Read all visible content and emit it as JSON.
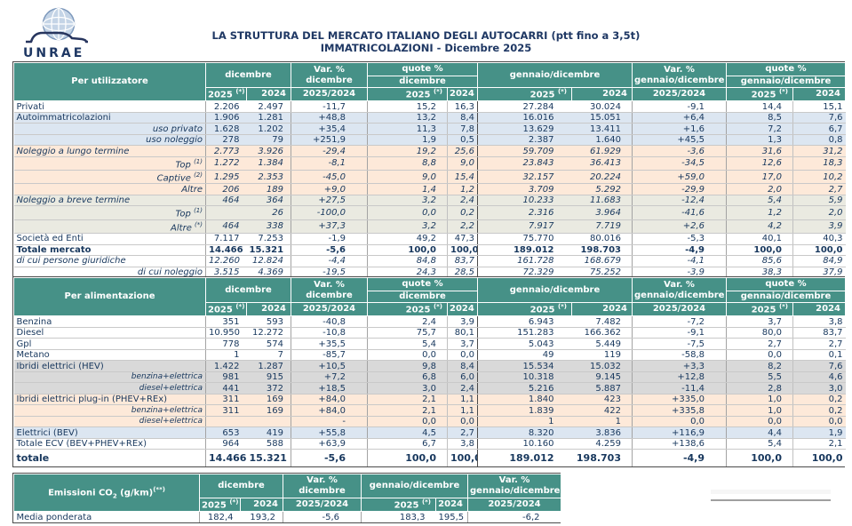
{
  "page": {
    "logo_text": "UNRAE",
    "title_line1": "LA STRUTTURA DEL MERCATO ITALIANO DEGLI AUTOCARRI (ptt fino a 3,5t)",
    "title_line2": "IMMATRICOLAZIONI - Dicembre 2025"
  },
  "colors": {
    "header_teal": "#469187",
    "text_navy": "#17375D",
    "title_navy": "#1F3864",
    "row_blue": "#DCE6F1",
    "row_peach": "#FDE9D9",
    "row_sand": "#EAEAE1",
    "row_gray": "#D9D9D9"
  },
  "header_labels": {
    "dicembre": "dicembre",
    "var_pct": "Var. %",
    "quote_pct": "quote %",
    "gen_dic": "gennaio/dicembre",
    "y2025": "2025",
    "y2025_sup": "(*)",
    "y2024": "2024",
    "ratio": "2025/2024"
  },
  "tables": {
    "per_utilizzatore": {
      "title": "Per utilizzatore",
      "rows": [
        {
          "label": "Privati",
          "cells": [
            "2.206",
            "2.497",
            "-11,7",
            "15,2",
            "16,3",
            "27.284",
            "30.024",
            "-9,1",
            "14,4",
            "15,1"
          ]
        },
        {
          "label": "Autoimmatricolazioni",
          "bg": "blue",
          "cells": [
            "1.906",
            "1.281",
            "+48,8",
            "13,2",
            "8,4",
            "16.016",
            "15.051",
            "+6,4",
            "8,5",
            "7,6"
          ]
        },
        {
          "label": "uso privato",
          "bg": "blue",
          "sub": true,
          "cells": [
            "1.628",
            "1.202",
            "+35,4",
            "11,3",
            "7,8",
            "13.629",
            "13.411",
            "+1,6",
            "7,2",
            "6,7"
          ]
        },
        {
          "label": "uso noleggio",
          "bg": "blue",
          "sub": true,
          "cells": [
            "278",
            "79",
            "+251,9",
            "1,9",
            "0,5",
            "2.387",
            "1.640",
            "+45,5",
            "1,3",
            "0,8"
          ]
        },
        {
          "label": "Noleggio a lungo termine",
          "bg": "peach",
          "italic": true,
          "icells": true,
          "cells": [
            "2.773",
            "3.926",
            "-29,4",
            "19,2",
            "25,6",
            "59.709",
            "61.929",
            "-3,6",
            "31,6",
            "31,2"
          ]
        },
        {
          "label": "Top",
          "sup": "(1)",
          "bg": "peach",
          "sub": true,
          "icells": true,
          "cells": [
            "1.272",
            "1.384",
            "-8,1",
            "8,8",
            "9,0",
            "23.843",
            "36.413",
            "-34,5",
            "12,6",
            "18,3"
          ]
        },
        {
          "label": "Captive",
          "sup": "(2)",
          "bg": "peach",
          "sub": true,
          "icells": true,
          "cells": [
            "1.295",
            "2.353",
            "-45,0",
            "9,0",
            "15,4",
            "32.157",
            "20.224",
            "+59,0",
            "17,0",
            "10,2"
          ]
        },
        {
          "label": "Altre",
          "bg": "peach",
          "sub": true,
          "icells": true,
          "cells": [
            "206",
            "189",
            "+9,0",
            "1,4",
            "1,2",
            "3.709",
            "5.292",
            "-29,9",
            "2,0",
            "2,7"
          ]
        },
        {
          "label": "Noleggio a breve termine",
          "bg": "sand",
          "italic": true,
          "icells": true,
          "cells": [
            "464",
            "364",
            "+27,5",
            "3,2",
            "2,4",
            "10.233",
            "11.683",
            "-12,4",
            "5,4",
            "5,9"
          ]
        },
        {
          "label": "Top",
          "sup": "(1)",
          "bg": "sand",
          "sub": true,
          "icells": true,
          "cells": [
            "",
            "26",
            "-100,0",
            "0,0",
            "0,2",
            "2.316",
            "3.964",
            "-41,6",
            "1,2",
            "2,0"
          ]
        },
        {
          "label": "Altre",
          "sup": "(*)",
          "bg": "sand",
          "sub": true,
          "icells": true,
          "cells": [
            "464",
            "338",
            "+37,3",
            "3,2",
            "2,2",
            "7.917",
            "7.719",
            "+2,6",
            "4,2",
            "3,9"
          ]
        },
        {
          "label": "Società ed Enti",
          "cells": [
            "7.117",
            "7.253",
            "-1,9",
            "49,2",
            "47,3",
            "75.770",
            "80.016",
            "-5,3",
            "40,1",
            "40,3"
          ]
        },
        {
          "label": "Totale mercato",
          "bold": true,
          "cells": [
            "14.466",
            "15.321",
            "-5,6",
            "100,0",
            "100,0",
            "189.012",
            "198.703",
            "-4,9",
            "100,0",
            "100,0"
          ]
        },
        {
          "label": "di cui persone giuridiche",
          "italic": true,
          "icells": true,
          "cells": [
            "12.260",
            "12.824",
            "-4,4",
            "84,8",
            "83,7",
            "161.728",
            "168.679",
            "-4,1",
            "85,6",
            "84,9"
          ]
        },
        {
          "label": "di cui noleggio",
          "sub": true,
          "icells": true,
          "cells": [
            "3.515",
            "4.369",
            "-19,5",
            "24,3",
            "28,5",
            "72.329",
            "75.252",
            "-3,9",
            "38,3",
            "37,9"
          ]
        }
      ]
    },
    "per_alimentazione": {
      "title": "Per alimentazione",
      "rows": [
        {
          "label": "Benzina",
          "cells": [
            "351",
            "593",
            "-40,8",
            "2,4",
            "3,9",
            "6.943",
            "7.482",
            "-7,2",
            "3,7",
            "3,8"
          ]
        },
        {
          "label": "Diesel",
          "cells": [
            "10.950",
            "12.272",
            "-10,8",
            "75,7",
            "80,1",
            "151.283",
            "166.362",
            "-9,1",
            "80,0",
            "83,7"
          ]
        },
        {
          "label": "Gpl",
          "cells": [
            "778",
            "574",
            "+35,5",
            "5,4",
            "3,7",
            "5.043",
            "5.449",
            "-7,5",
            "2,7",
            "2,7"
          ]
        },
        {
          "label": "Metano",
          "cells": [
            "1",
            "7",
            "-85,7",
            "0,0",
            "0,0",
            "49",
            "119",
            "-58,8",
            "0,0",
            "0,1"
          ]
        },
        {
          "label": "Ibridi elettrici (HEV)",
          "bg": "gray",
          "cells": [
            "1.422",
            "1.287",
            "+10,5",
            "9,8",
            "8,4",
            "15.534",
            "15.032",
            "+3,3",
            "8,2",
            "7,6"
          ]
        },
        {
          "label": "benzina+elettrica",
          "bg": "gray",
          "sub": true,
          "small": true,
          "cells": [
            "981",
            "915",
            "+7,2",
            "6,8",
            "6,0",
            "10.318",
            "9.145",
            "+12,8",
            "5,5",
            "4,6"
          ]
        },
        {
          "label": "diesel+elettrica",
          "bg": "gray",
          "sub": true,
          "small": true,
          "cells": [
            "441",
            "372",
            "+18,5",
            "3,0",
            "2,4",
            "5.216",
            "5.887",
            "-11,4",
            "2,8",
            "3,0"
          ]
        },
        {
          "label": "Ibridi elettrici plug-in (PHEV+REx)",
          "bg": "peach",
          "cells": [
            "311",
            "169",
            "+84,0",
            "2,1",
            "1,1",
            "1.840",
            "423",
            "+335,0",
            "1,0",
            "0,2"
          ]
        },
        {
          "label": "benzina+elettrica",
          "bg": "peach",
          "sub": true,
          "small": true,
          "cells": [
            "311",
            "169",
            "+84,0",
            "2,1",
            "1,1",
            "1.839",
            "422",
            "+335,8",
            "1,0",
            "0,2"
          ]
        },
        {
          "label": "diesel+elettrica",
          "bg": "peach",
          "sub": true,
          "small": true,
          "cells": [
            "",
            "",
            "-",
            "0,0",
            "0,0",
            "1",
            "1",
            "0,0",
            "0,0",
            "0,0"
          ]
        },
        {
          "label": "Elettrici (BEV)",
          "bg": "blue",
          "cells": [
            "653",
            "419",
            "+55,8",
            "4,5",
            "2,7",
            "8.320",
            "3.836",
            "+116,9",
            "4,4",
            "1,9"
          ]
        },
        {
          "label": "Totale ECV (BEV+PHEV+REx)",
          "cells": [
            "964",
            "588",
            "+63,9",
            "6,7",
            "3,8",
            "10.160",
            "4.259",
            "+138,6",
            "5,4",
            "2,1"
          ]
        },
        {
          "label": "totale",
          "bold": true,
          "tall": true,
          "cells": [
            "14.466",
            "15.321",
            "-5,6",
            "100,0",
            "100,0",
            "189.012",
            "198.703",
            "-4,9",
            "100,0",
            "100,0"
          ]
        }
      ]
    },
    "emissioni_co2": {
      "title_pre": "Emissioni CO",
      "title_sub": "2",
      "title_post": " (g/km)",
      "title_sup": "(**)",
      "rows": [
        {
          "label": "Media ponderata",
          "cells": [
            "182,4",
            "193,2",
            "-5,6",
            "183,3",
            "195,5",
            "-6,2"
          ]
        }
      ]
    }
  }
}
